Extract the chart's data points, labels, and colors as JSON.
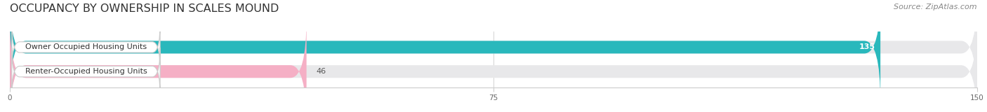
{
  "title": "OCCUPANCY BY OWNERSHIP IN SCALES MOUND",
  "source": "Source: ZipAtlas.com",
  "categories": [
    "Owner Occupied Housing Units",
    "Renter-Occupied Housing Units"
  ],
  "values": [
    135,
    46
  ],
  "bar_colors": [
    "#29b8bc",
    "#f5afc5"
  ],
  "bar_bg_color": "#e8e8ea",
  "label_bg_color": "#ffffff",
  "label_color": "#333333",
  "value_label_colors": [
    "#ffffff",
    "#555555"
  ],
  "xlim": [
    0,
    150
  ],
  "xticks": [
    0,
    75,
    150
  ],
  "title_fontsize": 11.5,
  "source_fontsize": 8,
  "label_fontsize": 8,
  "value_fontsize": 8,
  "bar_height": 0.52,
  "figsize": [
    14.06,
    1.6
  ],
  "dpi": 100
}
